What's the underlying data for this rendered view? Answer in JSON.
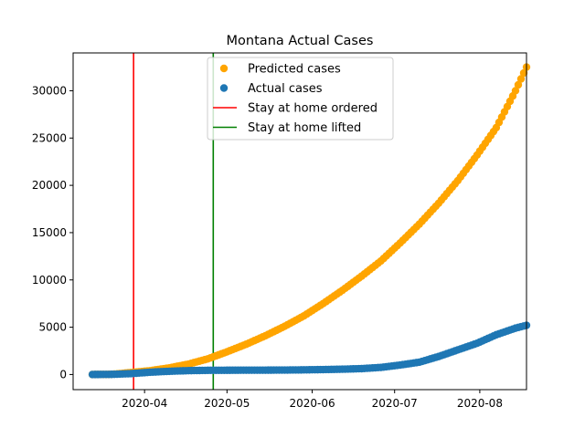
{
  "chart_data": {
    "type": "scatter",
    "title": "Montana Actual Cases",
    "xlabel": "",
    "ylabel": "",
    "x_type": "date",
    "xlim": [
      "2020-03-06",
      "2020-08-18"
    ],
    "ylim": [
      -1600,
      34000
    ],
    "x_ticks": [
      "2020-04-01",
      "2020-05-01",
      "2020-06-01",
      "2020-07-01",
      "2020-08-01"
    ],
    "x_tick_labels": [
      "2020-04",
      "2020-05",
      "2020-06",
      "2020-07",
      "2020-08"
    ],
    "y_ticks": [
      0,
      5000,
      10000,
      15000,
      20000,
      25000,
      30000
    ],
    "y_tick_labels": [
      "0",
      "5000",
      "10000",
      "15000",
      "20000",
      "25000",
      "30000"
    ],
    "grid": false,
    "legend_position": "upper center",
    "series": [
      {
        "name": "Predicted cases",
        "kind": "points",
        "color": "#ffa500",
        "points": [
          [
            "2020-03-13",
            0
          ],
          [
            "2020-03-20",
            20
          ],
          [
            "2020-03-27",
            200
          ],
          [
            "2020-04-03",
            400
          ],
          [
            "2020-04-10",
            700
          ],
          [
            "2020-04-17",
            1100
          ],
          [
            "2020-04-24",
            1650
          ],
          [
            "2020-05-01",
            2400
          ],
          [
            "2020-05-08",
            3200
          ],
          [
            "2020-05-15",
            4100
          ],
          [
            "2020-05-22",
            5100
          ],
          [
            "2020-05-29",
            6200
          ],
          [
            "2020-06-05",
            7500
          ],
          [
            "2020-06-12",
            8900
          ],
          [
            "2020-06-19",
            10400
          ],
          [
            "2020-06-26",
            12000
          ],
          [
            "2020-07-03",
            13900
          ],
          [
            "2020-07-10",
            15900
          ],
          [
            "2020-07-17",
            18100
          ],
          [
            "2020-07-24",
            20500
          ],
          [
            "2020-07-31",
            23200
          ],
          [
            "2020-08-07",
            26100
          ],
          [
            "2020-08-14",
            30000
          ],
          [
            "2020-08-18",
            32500
          ]
        ]
      },
      {
        "name": "Actual cases",
        "kind": "points",
        "color": "#1f77b4",
        "points": [
          [
            "2020-03-13",
            1
          ],
          [
            "2020-03-20",
            15
          ],
          [
            "2020-03-27",
            90
          ],
          [
            "2020-04-03",
            240
          ],
          [
            "2020-04-10",
            340
          ],
          [
            "2020-04-17",
            410
          ],
          [
            "2020-04-24",
            440
          ],
          [
            "2020-05-01",
            450
          ],
          [
            "2020-05-08",
            455
          ],
          [
            "2020-05-15",
            460
          ],
          [
            "2020-05-22",
            470
          ],
          [
            "2020-05-29",
            490
          ],
          [
            "2020-06-05",
            520
          ],
          [
            "2020-06-12",
            560
          ],
          [
            "2020-06-19",
            620
          ],
          [
            "2020-06-26",
            750
          ],
          [
            "2020-07-03",
            1000
          ],
          [
            "2020-07-10",
            1300
          ],
          [
            "2020-07-17",
            1900
          ],
          [
            "2020-07-24",
            2600
          ],
          [
            "2020-07-31",
            3300
          ],
          [
            "2020-08-07",
            4200
          ],
          [
            "2020-08-14",
            4900
          ],
          [
            "2020-08-18",
            5200
          ]
        ]
      },
      {
        "name": "Stay at home ordered",
        "kind": "vline",
        "color": "#ff0000",
        "x": "2020-03-28"
      },
      {
        "name": "Stay at home lifted",
        "kind": "vline",
        "color": "#008000",
        "x": "2020-04-26"
      }
    ]
  }
}
